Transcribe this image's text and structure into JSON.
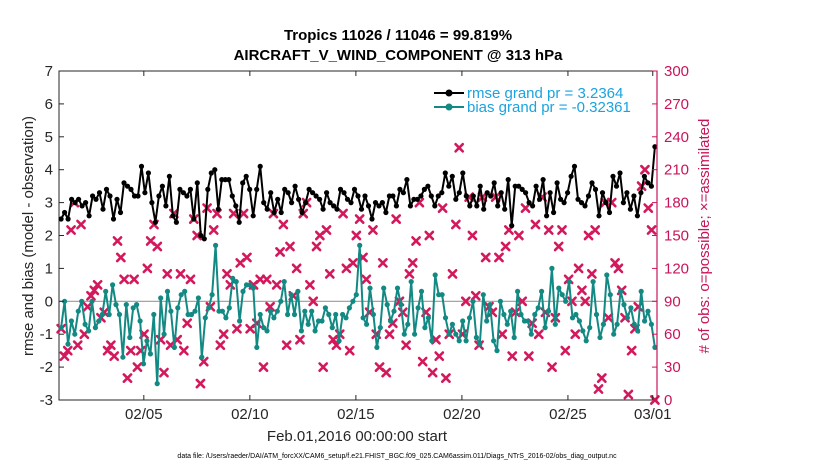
{
  "chart_data": {
    "type": "line",
    "title": "Tropics 11026 / 11046 = 99.819%",
    "subtitle": "AIRCRAFT_V_WIND_COMPONENT @ 313 hPa",
    "xlabel": "Feb.01,2016 00:00:00 start",
    "ylabel": "rmse and bias (model - observation)",
    "ylabel_right": "# of obs: o=possible; ×=assimilated",
    "xlim": [
      1,
      29.2
    ],
    "ylim": [
      -3,
      7
    ],
    "ylim_right": [
      0,
      300
    ],
    "x_ticks": [
      5,
      10,
      15,
      20,
      25,
      29
    ],
    "x_tick_labels": [
      "02/05",
      "02/10",
      "02/15",
      "02/20",
      "02/25",
      "03/01"
    ],
    "y_ticks": [
      -3,
      -2,
      -1,
      0,
      1,
      2,
      3,
      4,
      5,
      6,
      7
    ],
    "y_ticks_right": [
      0,
      30,
      60,
      90,
      120,
      150,
      180,
      210,
      240,
      270,
      300
    ],
    "zero_line": 0,
    "legend_position": "top-right",
    "colors": {
      "rmse": "#000000",
      "bias": "#138983",
      "obs": "#d4185c",
      "legend_text": "#1aa3e0",
      "right_axis": "#c8145a",
      "zero_line": "#9a9a9a"
    },
    "series": [
      {
        "name": "rmse grand pr = 3.2364",
        "axis": "left",
        "values": [
          2.5,
          2.7,
          2.5,
          3.1,
          3.0,
          3.1,
          2.9,
          3.0,
          2.6,
          3.2,
          3.1,
          3.3,
          2.8,
          3.4,
          3.2,
          2.5,
          3.1,
          2.7,
          3.6,
          3.5,
          3.4,
          3.2,
          3.2,
          4.1,
          3.3,
          3.9,
          3.0,
          2.4,
          3.2,
          3.5,
          2.9,
          3.8,
          2.6,
          2.4,
          3.4,
          3.3,
          3.2,
          3.4,
          2.5,
          3.6,
          2.0,
          1.9,
          3.4,
          3.9,
          4.0,
          2.8,
          3.7,
          3.7,
          3.7,
          3.2,
          2.9,
          2.4,
          3.6,
          3.8,
          3.4,
          2.6,
          3.4,
          4.1,
          3.0,
          2.8,
          3.3,
          2.7,
          3.1,
          2.7,
          3.4,
          3.3,
          3.0,
          3.5,
          3.1,
          2.7,
          3.0,
          3.4,
          3.3,
          3.2,
          3.1,
          2.8,
          3.3,
          3.0,
          2.9,
          2.8,
          3.4,
          3.3,
          3.1,
          3.0,
          3.4,
          3.2,
          2.8,
          3.2,
          2.9,
          2.5,
          3.0,
          2.9,
          3.0,
          2.7,
          3.2,
          3.2,
          2.9,
          3.4,
          3.3,
          3.7,
          2.9,
          3.1,
          3.1,
          3.2,
          3.4,
          3.5,
          3.2,
          2.9,
          3.2,
          3.3,
          3.9,
          3.5,
          3.8,
          3.1,
          3.3,
          3.9,
          3.2,
          2.9,
          3.2,
          2.9,
          3.5,
          2.8,
          3.3,
          3.2,
          3.6,
          2.9,
          3.3,
          2.8,
          3.7,
          2.3,
          3.5,
          3.5,
          3.4,
          3.3,
          3.0,
          2.9,
          3.5,
          3.1,
          3.7,
          2.6,
          3.3,
          2.7,
          3.6,
          3.1,
          3.0,
          3.3,
          3.8,
          4.1,
          3.1,
          3.0,
          2.9,
          3.2,
          3.6,
          3.4,
          2.6,
          3.3,
          3.0,
          2.7,
          3.8,
          3.5,
          3.9,
          3.0,
          3.3,
          2.8,
          3.2,
          2.6,
          3.3,
          3.8,
          3.6,
          3.5,
          4.7
        ]
      },
      {
        "name": "bias grand pr = -0.32361",
        "axis": "left",
        "values": [
          -0.8,
          0.0,
          -1.3,
          -0.6,
          -1.0,
          -0.3,
          0.0,
          -0.7,
          -0.9,
          0.0,
          -0.8,
          -0.6,
          -0.4,
          0.3,
          -0.4,
          0.5,
          -0.1,
          -0.4,
          -1.7,
          -0.1,
          -1.1,
          -0.2,
          -0.1,
          -0.6,
          -1.9,
          -1.2,
          -1.6,
          -0.4,
          -2.5,
          0.1,
          -1.0,
          0.3,
          -0.3,
          -1.4,
          -0.2,
          0.2,
          0.3,
          -0.4,
          -0.4,
          -0.3,
          0.1,
          -1.7,
          -0.5,
          -0.2,
          0.2,
          1.7,
          -0.3,
          -0.3,
          -0.5,
          -0.2,
          0.7,
          0.6,
          -0.6,
          0.3,
          0.5,
          0.5,
          0.4,
          -1.4,
          -0.4,
          -0.8,
          -0.9,
          -0.3,
          -0.5,
          -0.3,
          0.0,
          0.6,
          -0.4,
          0.2,
          -0.4,
          0.3,
          -0.9,
          -0.3,
          -0.7,
          -0.3,
          -0.9,
          -0.6,
          -0.6,
          -0.2,
          -0.4,
          -0.8,
          -0.4,
          -1.2,
          -0.4,
          -0.5,
          -0.2,
          0.0,
          0.2,
          1.7,
          -0.5,
          -0.7,
          0.4,
          -0.4,
          -1.4,
          -0.8,
          0.4,
          -0.1,
          -0.6,
          -0.3,
          0.4,
          -0.1,
          -1.0,
          -0.7,
          0.6,
          -1.0,
          -0.2,
          0.3,
          -0.8,
          -0.5,
          -1.2,
          0.8,
          0.2,
          0.2,
          -0.5,
          -1.0,
          -0.7,
          -1.0,
          -1.2,
          -0.6,
          -1.2,
          -0.5,
          0.0,
          -1.1,
          -1.3,
          0.2,
          -0.6,
          -0.1,
          -1.2,
          -1.5,
          0.0,
          -0.4,
          -0.7,
          -0.3,
          -1.1,
          0.3,
          -0.4,
          -0.6,
          -0.6,
          -1.0,
          -0.4,
          -0.2,
          0.3,
          -0.8,
          -0.3,
          1.0,
          -0.7,
          0.4,
          0.2,
          0.0,
          0.6,
          -0.5,
          -0.4,
          -0.6,
          -0.9,
          -1.2,
          -0.8,
          0.6,
          -0.4,
          -1.1,
          -0.7,
          0.8,
          0.2,
          -1.0,
          -0.7,
          0.3,
          -0.1,
          -0.5,
          -0.2,
          -0.7,
          -0.9,
          0.3,
          -0.6,
          -0.3,
          -0.7,
          -1.4
        ]
      },
      {
        "name": "obs count (possible / assimilated)",
        "axis": "right",
        "marker": "x",
        "values": [
          65,
          40,
          45,
          155,
          180,
          50,
          160,
          60,
          85,
          95,
          100,
          105,
          75,
          80,
          45,
          50,
          40,
          145,
          130,
          110,
          20,
          45,
          110,
          30,
          45,
          60,
          120,
          145,
          160,
          140,
          55,
          25,
          115,
          50,
          170,
          55,
          115,
          45,
          70,
          110,
          165,
          150,
          15,
          35,
          175,
          85,
          155,
          170,
          50,
          60,
          115,
          105,
          170,
          65,
          125,
          170,
          130,
          65,
          105,
          70,
          110,
          30,
          110,
          85,
          170,
          105,
          135,
          160,
          50,
          140,
          95,
          120,
          55,
          170,
          180,
          105,
          90,
          140,
          150,
          30,
          155,
          115,
          55,
          50,
          60,
          170,
          120,
          45,
          125,
          150,
          165,
          130,
          110,
          80,
          155,
          60,
          30,
          125,
          25,
          60,
          70,
          165,
          90,
          80,
          50,
          115,
          125,
          145,
          180,
          35,
          80,
          150,
          25,
          55,
          40,
          175,
          20,
          60,
          115,
          160,
          230,
          60,
          90,
          185,
          150,
          95,
          50,
          185,
          130,
          85,
          80,
          185,
          130,
          60,
          140,
          155,
          40,
          80,
          150,
          90,
          175,
          40,
          70,
          160,
          60,
          185,
          80,
          155,
          30,
          75,
          140,
          155,
          45,
          110,
          90,
          60,
          120,
          100,
          90,
          150,
          115,
          155,
          10,
          20,
          180,
          75,
          180,
          125,
          120,
          100,
          75,
          5,
          45,
          65,
          85,
          195,
          210,
          175,
          155,
          0
        ]
      }
    ],
    "footnote": "data file: /Users/raeder/DAI/ATM_forcXX/CAM6_setup/f.e21.FHIST_BGC.f09_025.CAM6assim.011/Diags_NTrS_2016-02/obs_diag_output.nc"
  }
}
